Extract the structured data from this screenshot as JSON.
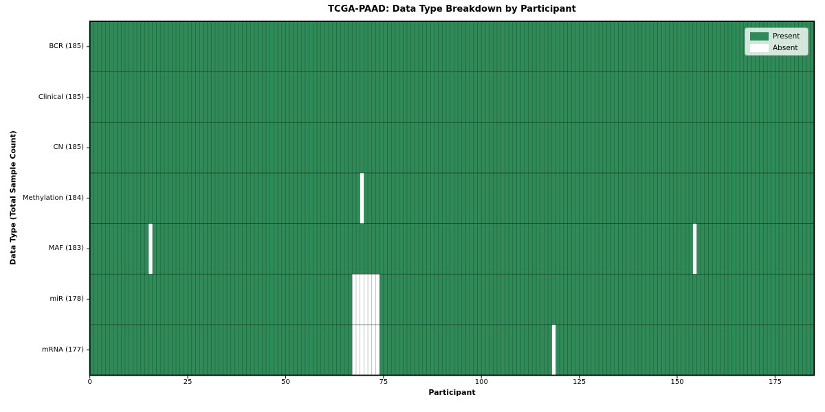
{
  "chart_data": {
    "type": "heatmap",
    "title": "TCGA-PAAD: Data Type Breakdown by Participant",
    "xlabel": "Participant",
    "ylabel": "Data Type (Total Sample Count)",
    "n_participants": 185,
    "x_ticks": [
      "0",
      "25",
      "50",
      "75",
      "100",
      "125",
      "150",
      "175"
    ],
    "rows": [
      {
        "label": "BCR (185)",
        "present_count": 185,
        "absent_participants": []
      },
      {
        "label": "Clinical (185)",
        "present_count": 185,
        "absent_participants": []
      },
      {
        "label": "CN (185)",
        "present_count": 185,
        "absent_participants": []
      },
      {
        "label": "Methylation (184)",
        "present_count": 184,
        "absent_participants": [
          69
        ]
      },
      {
        "label": "MAF (183)",
        "present_count": 183,
        "absent_participants": [
          15,
          154
        ]
      },
      {
        "label": "miR (178)",
        "present_count": 178,
        "absent_participants": [
          67,
          68,
          69,
          70,
          71,
          72,
          73
        ]
      },
      {
        "label": "mRNA (177)",
        "present_count": 177,
        "absent_participants": [
          67,
          68,
          69,
          70,
          71,
          72,
          73,
          118
        ]
      }
    ],
    "legend": {
      "present_label": "Present",
      "absent_label": "Absent"
    },
    "colors": {
      "present": "#2f8a58",
      "absent": "#ffffff"
    }
  }
}
